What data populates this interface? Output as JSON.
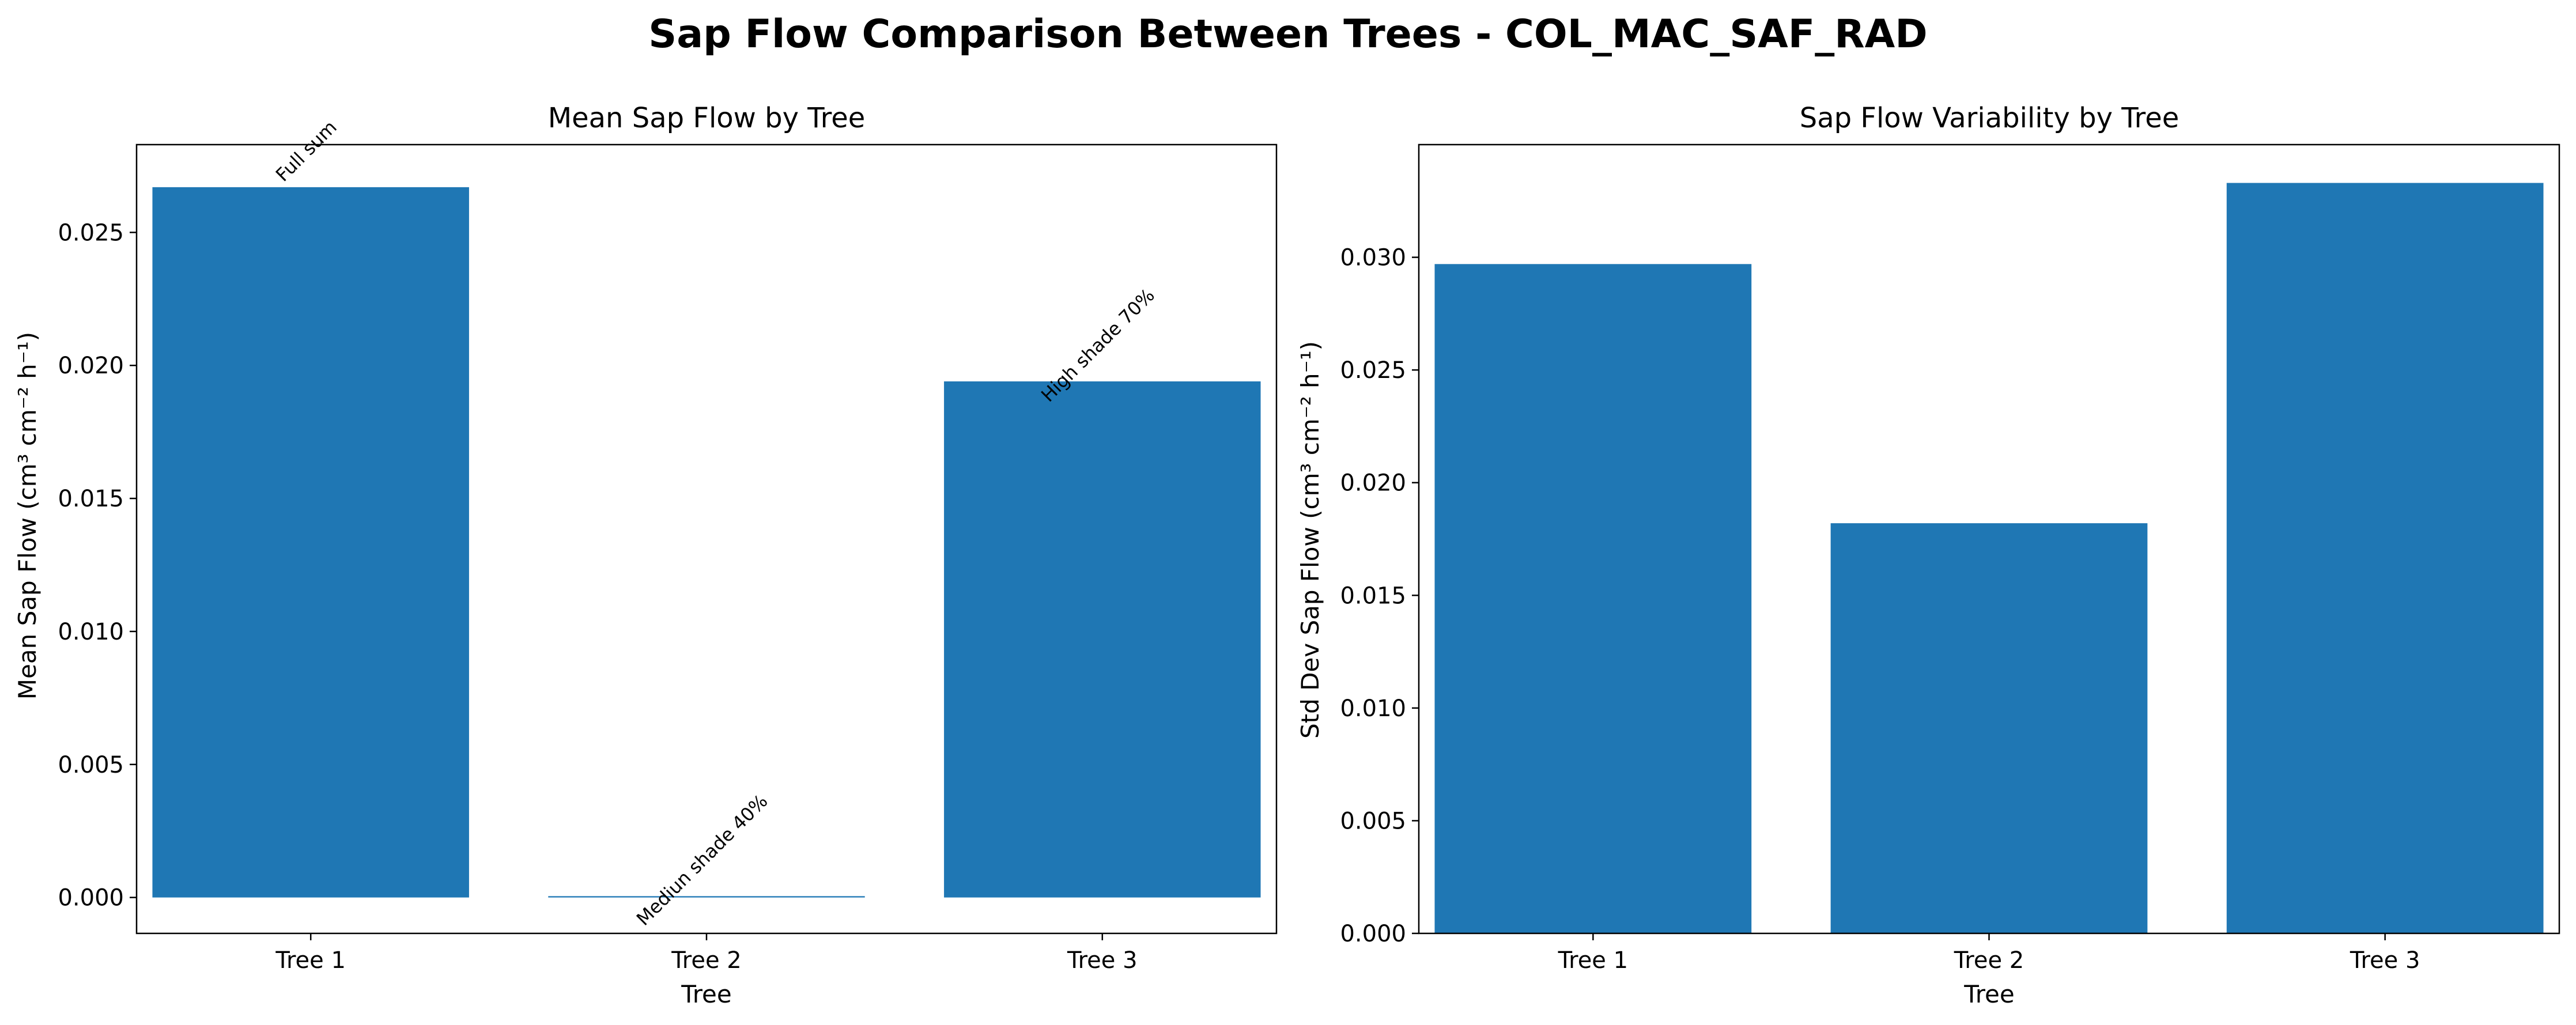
{
  "figure": {
    "suptitle": "Sap Flow Comparison Between Trees - COL_MAC_SAF_RAD",
    "bar_color": "#1f77b4"
  },
  "chart_data": [
    {
      "type": "bar",
      "title": "Mean Sap Flow by Tree",
      "xlabel": "Tree",
      "ylabel": "Mean Sap Flow (cm³ cm⁻² h⁻¹)",
      "categories": [
        "Tree 1",
        "Tree 2",
        "Tree 3"
      ],
      "values": [
        0.0267,
        5e-05,
        0.0194
      ],
      "annotations": [
        "Full sum",
        "Mediun shade 40%",
        "High shade 70%"
      ],
      "ylim": [
        -0.00135,
        0.0283
      ],
      "yticks": [
        0.0,
        0.005,
        0.01,
        0.015,
        0.02,
        0.025
      ],
      "ytick_labels": [
        "0.000",
        "0.005",
        "0.010",
        "0.015",
        "0.020",
        "0.025"
      ],
      "grid": false,
      "legend": "none"
    },
    {
      "type": "bar",
      "title": "Sap Flow Variability by Tree",
      "xlabel": "Tree",
      "ylabel": "Std Dev Sap Flow (cm³ cm⁻² h⁻¹)",
      "categories": [
        "Tree 1",
        "Tree 2",
        "Tree 3"
      ],
      "values": [
        0.0297,
        0.0182,
        0.0333
      ],
      "ylim": [
        0.0,
        0.035
      ],
      "yticks": [
        0.0,
        0.005,
        0.01,
        0.015,
        0.02,
        0.025,
        0.03
      ],
      "ytick_labels": [
        "0.000",
        "0.005",
        "0.010",
        "0.015",
        "0.020",
        "0.025",
        "0.030"
      ],
      "grid": false,
      "legend": "none"
    }
  ]
}
